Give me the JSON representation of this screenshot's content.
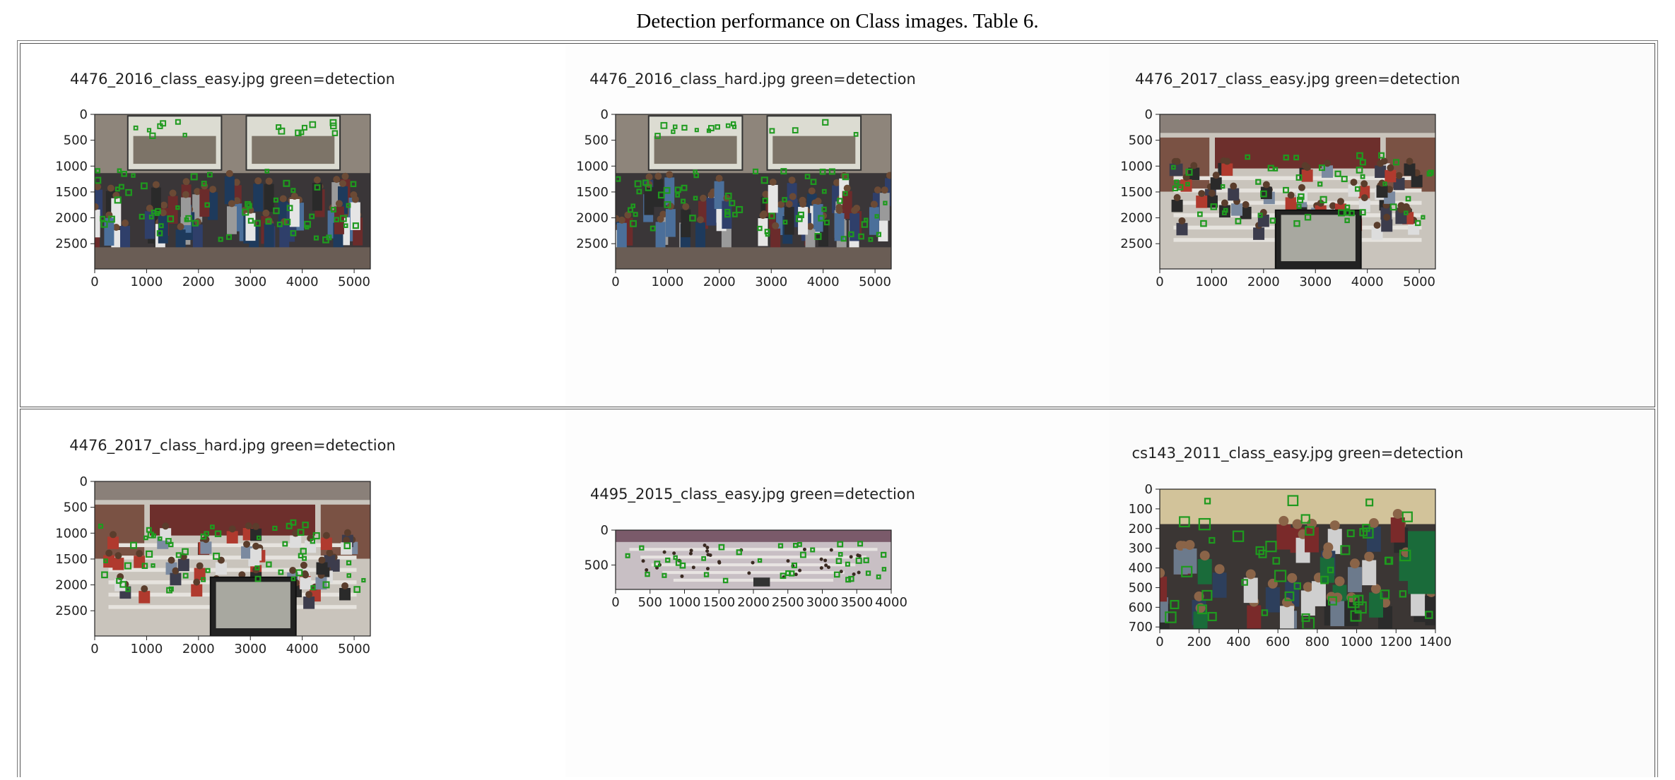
{
  "caption": "Detection performance on Class images. Table 6.",
  "plots": [
    {
      "title": "4476_2016_class_easy.jpg green=detection",
      "image_width": 5312,
      "image_height": 2988,
      "x_ticks": [
        "0",
        "1000",
        "2000",
        "3000",
        "4000",
        "5000"
      ],
      "y_ticks": [
        "0",
        "500",
        "1000",
        "1500",
        "2000",
        "2500"
      ],
      "scene": "group_two_screens"
    },
    {
      "title": "4476_2016_class_hard.jpg green=detection",
      "image_width": 5312,
      "image_height": 2988,
      "x_ticks": [
        "0",
        "1000",
        "2000",
        "3000",
        "4000",
        "5000"
      ],
      "y_ticks": [
        "0",
        "500",
        "1000",
        "1500",
        "2000",
        "2500"
      ],
      "scene": "group_two_screens"
    },
    {
      "title": "4476_2017_class_easy.jpg green=detection",
      "image_width": 5312,
      "image_height": 2988,
      "x_ticks": [
        "0",
        "1000",
        "2000",
        "3000",
        "4000",
        "5000"
      ],
      "y_ticks": [
        "0",
        "500",
        "1000",
        "1500",
        "2000",
        "2500"
      ],
      "scene": "lecture_hall_monitor"
    },
    {
      "title": "4476_2017_class_hard.jpg green=detection",
      "image_width": 5312,
      "image_height": 2988,
      "x_ticks": [
        "0",
        "1000",
        "2000",
        "3000",
        "4000",
        "5000"
      ],
      "y_ticks": [
        "0",
        "500",
        "1000",
        "1500",
        "2000",
        "2500"
      ],
      "scene": "lecture_hall_monitor"
    },
    {
      "title": "4495_2015_class_easy.jpg green=detection",
      "image_width": 4000,
      "image_height": 850,
      "x_ticks": [
        "0",
        "500",
        "1000",
        "1500",
        "2000",
        "2500",
        "3000",
        "3500",
        "4000"
      ],
      "y_ticks": [
        "0",
        "500"
      ],
      "scene": "panorama_hall"
    },
    {
      "title": "cs143_2011_class_easy.jpg green=detection",
      "image_width": 1400,
      "image_height": 710,
      "x_ticks": [
        "0",
        "200",
        "400",
        "600",
        "800",
        "1000",
        "1200",
        "1400"
      ],
      "y_ticks": [
        "0",
        "100",
        "200",
        "300",
        "400",
        "500",
        "600",
        "700"
      ],
      "scene": "classroom_seated"
    }
  ],
  "colors": {
    "detection": "#1f9a1f",
    "axis": "#222222"
  }
}
